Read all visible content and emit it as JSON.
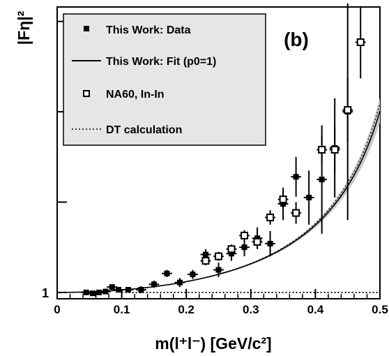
{
  "chart_data": {
    "type": "scatter",
    "panel_label": "(b)",
    "xlabel": "m(l⁺l⁻)  [GeV/c²]",
    "ylabel": "|Fη|²",
    "xlim": [
      0,
      0.5
    ],
    "ylim": [
      0.93,
      4.16
    ],
    "xticks": [
      0,
      0.1,
      0.2,
      0.3,
      0.4,
      0.5
    ],
    "xtick_labels": [
      "0",
      "0.1",
      "0.2",
      "0.3",
      "0.4",
      "0.5"
    ],
    "ytick_labels": [
      {
        "value": 1,
        "label": "1"
      }
    ],
    "legend_position": "top-left",
    "series": [
      {
        "name": "This Work: Data",
        "marker": "filled-square",
        "points": [
          {
            "x": 0.045,
            "y": 1.0,
            "ey": 0.02
          },
          {
            "x": 0.055,
            "y": 0.99,
            "ey": 0.02
          },
          {
            "x": 0.065,
            "y": 1.0,
            "ey": 0.02
          },
          {
            "x": 0.075,
            "y": 1.01,
            "ey": 0.02
          },
          {
            "x": 0.085,
            "y": 1.06,
            "ey": 0.02
          },
          {
            "x": 0.095,
            "y": 1.03,
            "ey": 0.02
          },
          {
            "x": 0.11,
            "y": 1.03,
            "ey": 0.03
          },
          {
            "x": 0.13,
            "y": 1.03,
            "ey": 0.04
          },
          {
            "x": 0.15,
            "y": 1.09,
            "ey": 0.04
          },
          {
            "x": 0.17,
            "y": 1.21,
            "ey": 0.04
          },
          {
            "x": 0.19,
            "y": 1.11,
            "ey": 0.05
          },
          {
            "x": 0.21,
            "y": 1.2,
            "ey": 0.05
          },
          {
            "x": 0.23,
            "y": 1.42,
            "ey": 0.06
          },
          {
            "x": 0.25,
            "y": 1.25,
            "ey": 0.08
          },
          {
            "x": 0.27,
            "y": 1.43,
            "ey": 0.08
          },
          {
            "x": 0.29,
            "y": 1.5,
            "ey": 0.1
          },
          {
            "x": 0.31,
            "y": 1.6,
            "ey": 0.12
          },
          {
            "x": 0.33,
            "y": 1.54,
            "ey": 0.14
          },
          {
            "x": 0.35,
            "y": 1.98,
            "ey": 0.18
          },
          {
            "x": 0.37,
            "y": 2.28,
            "ey": 0.22
          },
          {
            "x": 0.39,
            "y": 2.05,
            "ey": 0.3
          },
          {
            "x": 0.41,
            "y": 2.25,
            "ey": 0.6
          },
          {
            "x": 0.43,
            "y": 2.6,
            "ey": 0.55
          },
          {
            "x": 0.45,
            "y": 3.0,
            "ey": 1.2
          }
        ]
      },
      {
        "name": "NA60, In-In",
        "marker": "open-square",
        "points": [
          {
            "x": 0.23,
            "y": 1.35,
            "ey": 0.05
          },
          {
            "x": 0.25,
            "y": 1.4,
            "ey": 0.05
          },
          {
            "x": 0.27,
            "y": 1.48,
            "ey": 0.05
          },
          {
            "x": 0.29,
            "y": 1.63,
            "ey": 0.06
          },
          {
            "x": 0.31,
            "y": 1.56,
            "ey": 0.07
          },
          {
            "x": 0.33,
            "y": 1.83,
            "ey": 0.08
          },
          {
            "x": 0.35,
            "y": 2.03,
            "ey": 0.1
          },
          {
            "x": 0.37,
            "y": 1.88,
            "ey": 0.12
          },
          {
            "x": 0.41,
            "y": 2.58,
            "ey": 0.15
          },
          {
            "x": 0.43,
            "y": 2.58,
            "ey": 0.25
          },
          {
            "x": 0.45,
            "y": 3.02,
            "ey": 0.35
          },
          {
            "x": 0.47,
            "y": 3.77,
            "ey": 0.4
          }
        ]
      },
      {
        "name": "This Work: Fit (p0=1)",
        "style": "solid-line-with-gray-band",
        "model": "1/(1 - x^2/L^2)",
        "L": 0.612
      },
      {
        "name": "DT calculation",
        "style": "dotted-line",
        "curve_y": 1
      }
    ]
  }
}
